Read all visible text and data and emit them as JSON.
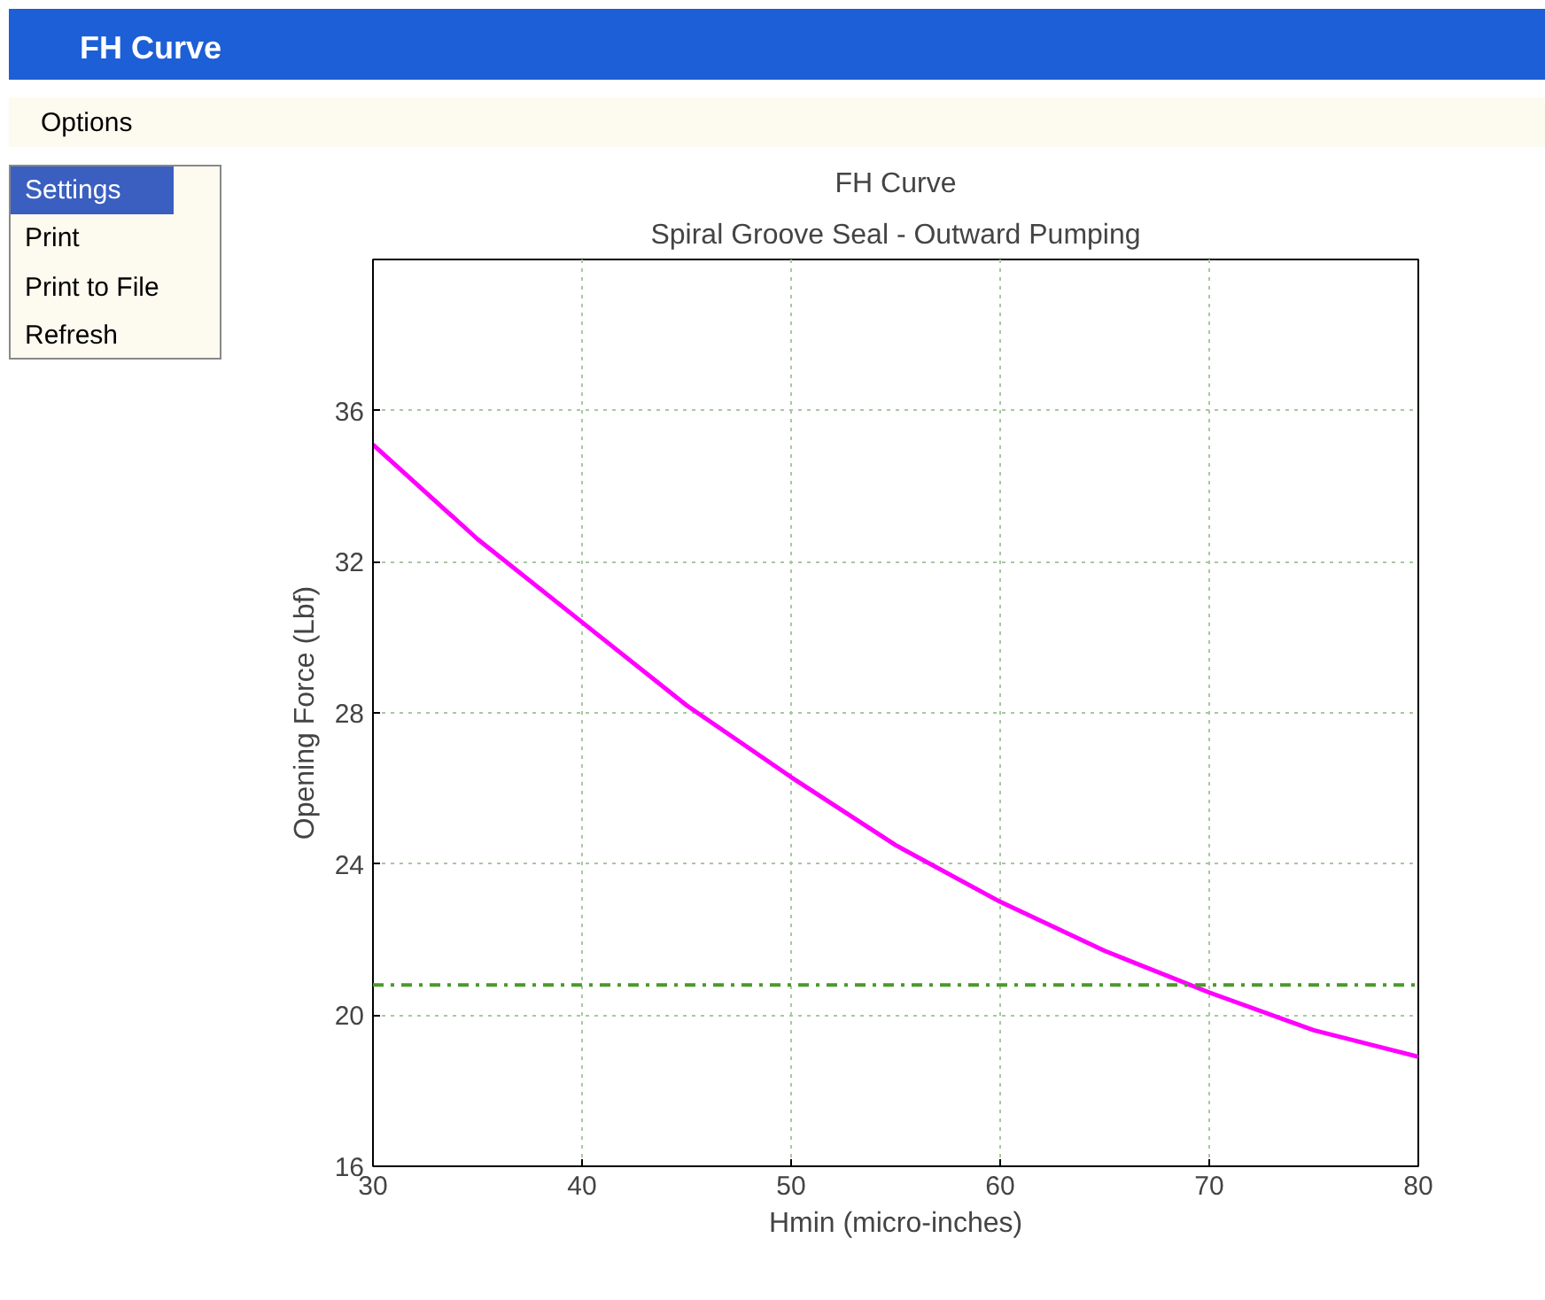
{
  "chart_data": {
    "type": "line",
    "title": "FH Curve",
    "subtitle": "Spiral Groove Seal - Outward Pumping",
    "xlabel": "Hmin (micro-inches)",
    "ylabel": "Opening Force (Lbf)",
    "x": [
      30,
      35,
      40,
      45,
      50,
      55,
      60,
      65,
      70,
      75,
      80
    ],
    "series": [
      {
        "color": "#ff00ff",
        "values": [
          35.1,
          32.6,
          30.4,
          28.2,
          26.3,
          24.5,
          23.0,
          21.7,
          20.6,
          19.6,
          18.9
        ]
      }
    ],
    "xlim": [
      30,
      80
    ],
    "ylim": [
      16,
      40
    ],
    "xticks": [
      30,
      40,
      50,
      60,
      70,
      80
    ],
    "yticks": [
      16,
      20,
      24,
      28,
      32,
      36
    ],
    "ref_lines": [
      {
        "axis": "y",
        "value": 20.8,
        "color": "#4a9a2a",
        "line_style": "dashdot"
      }
    ],
    "grid": true,
    "marker": "none",
    "line_style": "solid",
    "annotations": [
      "FH Curve",
      "Options",
      "Settings",
      "Print",
      "Print to File",
      "Refresh"
    ]
  }
}
